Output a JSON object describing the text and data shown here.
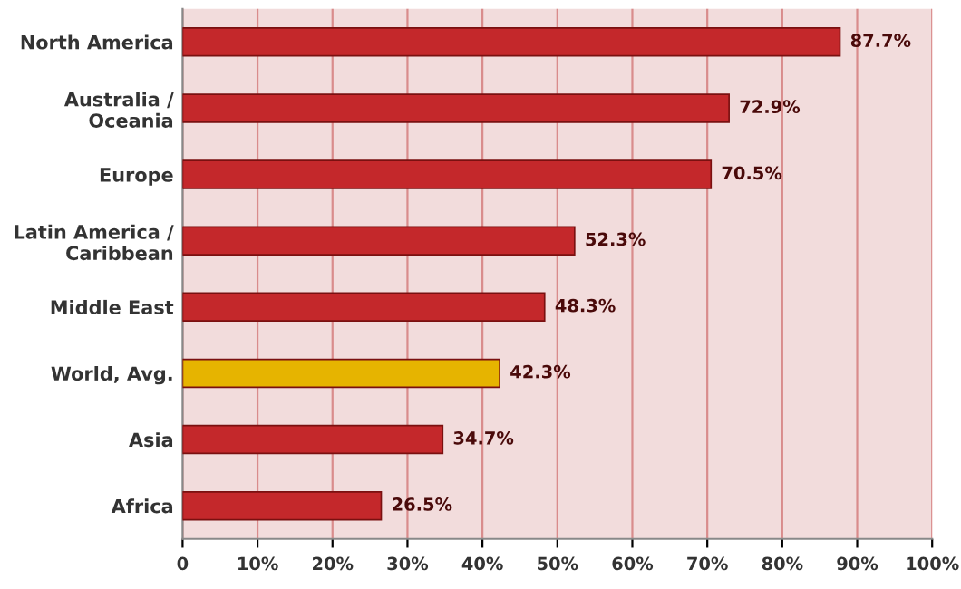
{
  "chart_data": {
    "type": "bar",
    "orientation": "horizontal",
    "categories": [
      "North America",
      "Australia /\nOceania",
      "Europe",
      "Latin America /\nCaribbean",
      "Middle East",
      "World, Avg.",
      "Asia",
      "Africa"
    ],
    "values": [
      87.7,
      72.9,
      70.5,
      52.3,
      48.3,
      42.3,
      34.7,
      26.5
    ],
    "colors": [
      "#c4282b",
      "#c4282b",
      "#c4282b",
      "#c4282b",
      "#c4282b",
      "#e6b400",
      "#c4282b",
      "#c4282b"
    ],
    "value_labels": [
      "87.7%",
      "72.9%",
      "70.5%",
      "52.3%",
      "48.3%",
      "42.3%",
      "34.7%",
      "26.5%"
    ],
    "xlim": [
      0,
      100
    ],
    "xticks": [
      {
        "value": 0,
        "label": "0"
      },
      {
        "value": 10,
        "label": "10%"
      },
      {
        "value": 20,
        "label": "20%"
      },
      {
        "value": 30,
        "label": "30%"
      },
      {
        "value": 40,
        "label": "40%"
      },
      {
        "value": 50,
        "label": "50%"
      },
      {
        "value": 60,
        "label": "60%"
      },
      {
        "value": 70,
        "label": "70%"
      },
      {
        "value": 80,
        "label": "80%"
      },
      {
        "value": 90,
        "label": "90%"
      },
      {
        "value": 100,
        "label": "100%"
      }
    ],
    "grid": "x",
    "legend": false
  }
}
